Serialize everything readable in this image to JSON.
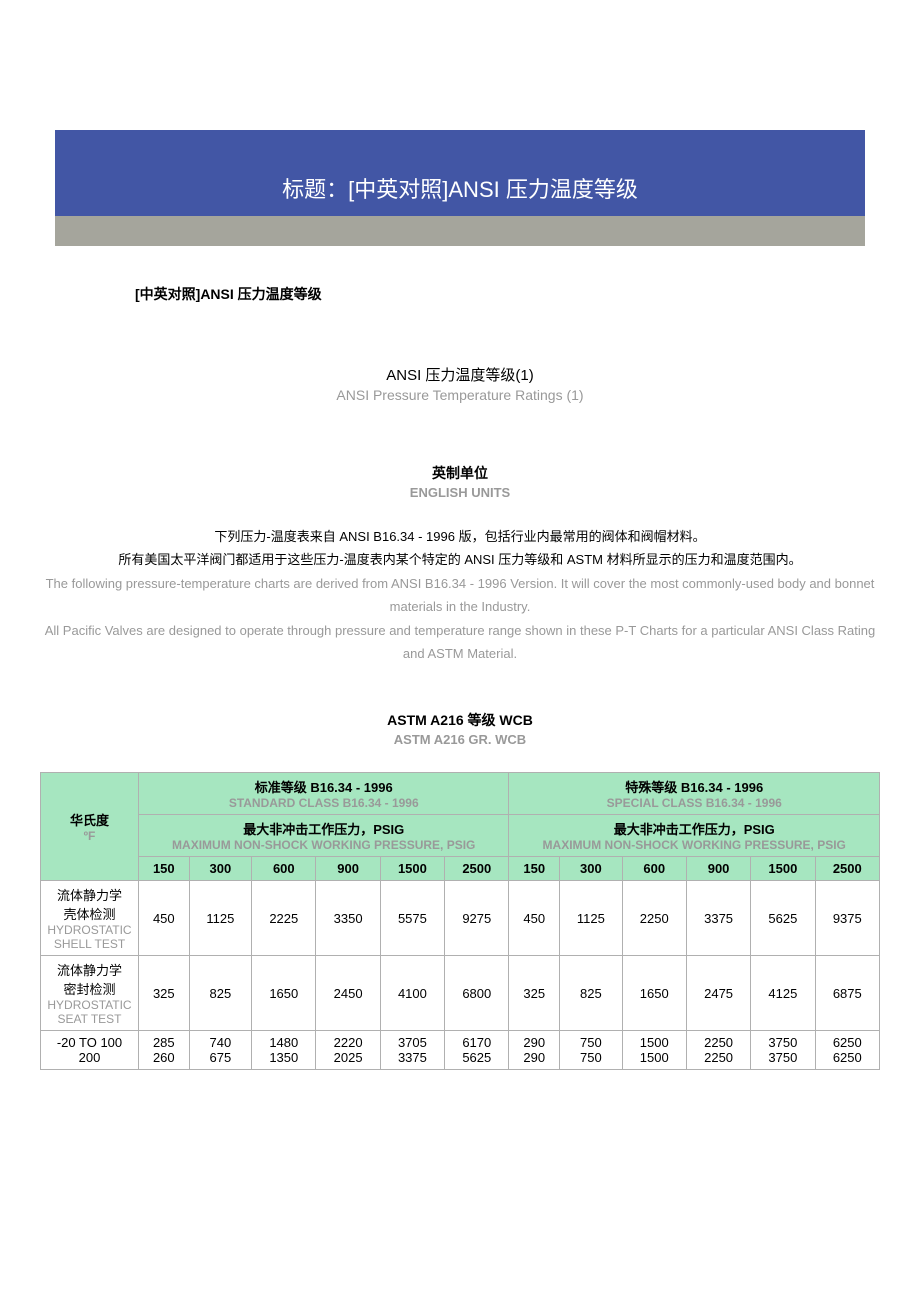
{
  "title": "标题：[中英对照]ANSI 压力温度等级",
  "subtitle": "[中英对照]ANSI 压力温度等级",
  "subheading_cn": "ANSI 压力温度等级(1)",
  "subheading_en": "ANSI Pressure Temperature Ratings (1)",
  "units_cn": "英制单位",
  "units_en": "ENGLISH UNITS",
  "desc_cn_1": "下列压力-温度表来自 ANSI B16.34 - 1996 版，包括行业内最常用的阀体和阀帽材料。",
  "desc_cn_2": "所有美国太平洋阀门都适用于这些压力-温度表内某个特定的 ANSI 压力等级和 ASTM 材料所显示的压力和温度范围内。",
  "desc_en_1": "The following pressure-temperature charts are derived from ANSI B16.34 - 1996 Version. It will cover the most commonly-used body and bonnet materials in the Industry.",
  "desc_en_2": "All Pacific Valves are designed to operate through pressure and temperature range shown in these P-T Charts for a particular ANSI Class Rating and ASTM Material.",
  "table_title_cn": "ASTM A216 等级 WCB",
  "table_title_en": "ASTM A216 GR. WCB",
  "colors": {
    "title_bg": "#4256a5",
    "gray_bg": "#a5a59c",
    "green_bg": "#a6e6c0",
    "text_gray": "#999999",
    "border": "#b0b0b0"
  },
  "table": {
    "temp_label_cn": "华氏度",
    "temp_label_en": "ºF",
    "std_class_cn": "标准等级 B16.34 - 1996",
    "std_class_en": "STANDARD CLASS B16.34 - 1996",
    "spec_class_cn": "特殊等级 B16.34 - 1996",
    "spec_class_en": "SPECIAL CLASS B16.34 - 1996",
    "max_psig_cn": "最大非冲击工作压力，PSIG",
    "max_psig_en": "MAXIMUM NON-SHOCK WORKING PRESSURE, PSIG",
    "class_headers": [
      "150",
      "300",
      "600",
      "900",
      "1500",
      "2500"
    ],
    "rows": [
      {
        "label_cn": "流体静力学\n壳体检测",
        "label_en": "HYDROSTATIC\nSHELL TEST",
        "std": [
          "450",
          "1125",
          "2225",
          "3350",
          "5575",
          "9275"
        ],
        "spec": [
          "450",
          "1125",
          "2250",
          "3375",
          "5625",
          "9375"
        ]
      },
      {
        "label_cn": "流体静力学\n密封检测",
        "label_en": "HYDROSTATIC\nSEAT TEST",
        "std": [
          "325",
          "825",
          "1650",
          "2450",
          "4100",
          "6800"
        ],
        "spec": [
          "325",
          "825",
          "1650",
          "2475",
          "4125",
          "6875"
        ]
      },
      {
        "label_cn": "-20 TO 100",
        "label_en": "",
        "std": [
          "285",
          "740",
          "1480",
          "2220",
          "3705",
          "6170"
        ],
        "spec": [
          "290",
          "750",
          "1500",
          "2250",
          "3750",
          "6250"
        ]
      },
      {
        "label_cn": "200",
        "label_en": "",
        "std": [
          "260",
          "675",
          "1350",
          "2025",
          "3375",
          "5625"
        ],
        "spec": [
          "290",
          "750",
          "1500",
          "2250",
          "3750",
          "6250"
        ]
      }
    ]
  }
}
